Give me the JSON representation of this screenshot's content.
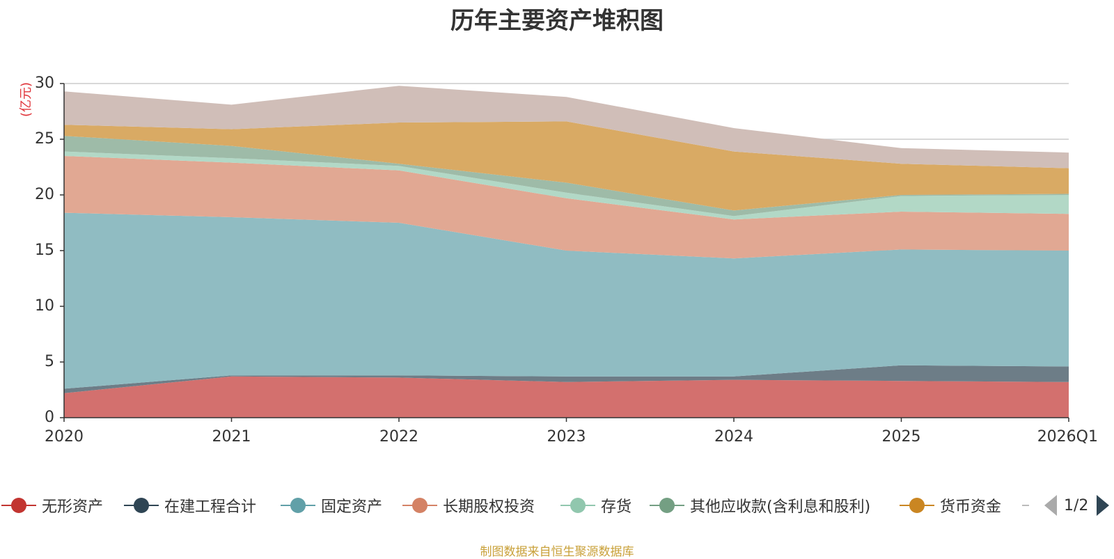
{
  "title": "历年主要资产堆积图",
  "source_note": "制图数据来自恒生聚源数据库",
  "pager": {
    "text": "1/2"
  },
  "chart_data": {
    "type": "area",
    "stacked": true,
    "title": "历年主要资产堆积图",
    "ylabel": "(亿元)",
    "xlabel": "",
    "ylim": [
      0,
      30
    ],
    "yticks": [
      0,
      5,
      10,
      15,
      20,
      25,
      30
    ],
    "grid": true,
    "legend_placement": "bottom",
    "categories": [
      "2020",
      "2021",
      "2022",
      "2023",
      "2024",
      "2025",
      "2026Q1"
    ],
    "series": [
      {
        "name": "无形资产",
        "color": "#c23531",
        "area_color": "#d3706e",
        "values": [
          2.2,
          3.7,
          3.6,
          3.2,
          3.4,
          3.3,
          3.2
        ]
      },
      {
        "name": "在建工程合计",
        "color": "#2f4554",
        "area_color": "#6d7d87",
        "values": [
          0.4,
          0.1,
          0.2,
          0.5,
          0.3,
          1.4,
          1.4
        ]
      },
      {
        "name": "固定资产",
        "color": "#61a0a8",
        "area_color": "#90bcc2",
        "values": [
          15.8,
          14.2,
          13.7,
          11.3,
          10.6,
          10.4,
          10.4
        ]
      },
      {
        "name": "长期股权投资",
        "color": "#d48265",
        "area_color": "#e1a893",
        "values": [
          5.1,
          4.9,
          4.7,
          4.7,
          3.5,
          3.4,
          3.3
        ]
      },
      {
        "name": "存货",
        "color": "#91c7ae",
        "area_color": "#b2d8c6",
        "values": [
          0.4,
          0.4,
          0.4,
          0.5,
          0.3,
          1.4,
          1.7
        ]
      },
      {
        "name": "其他应收款(含利息和股利)",
        "color": "#749f83",
        "area_color": "#9ebba8",
        "values": [
          1.4,
          1.1,
          0.2,
          0.9,
          0.5,
          0.1,
          0.1
        ]
      },
      {
        "name": "货币资金",
        "color": "#ca8622",
        "area_color": "#d9aa64",
        "values": [
          1.0,
          1.5,
          3.7,
          5.5,
          5.3,
          2.8,
          2.3
        ]
      },
      {
        "name": "",
        "color": "#bda29a",
        "area_color": "#d0beb8",
        "values": [
          3.0,
          2.2,
          3.3,
          2.2,
          2.1,
          1.4,
          1.4
        ]
      }
    ]
  }
}
